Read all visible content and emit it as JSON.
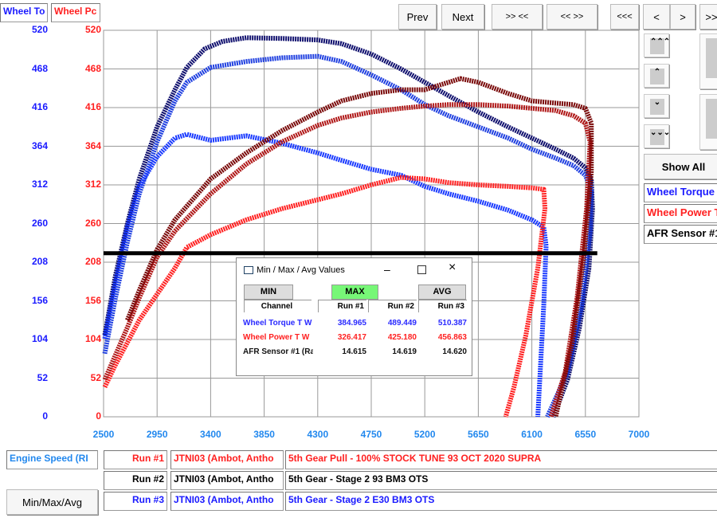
{
  "top_labels": {
    "torque": "Wheel To",
    "power": "Wheel Pc"
  },
  "toolbar": {
    "prev": "Prev",
    "next": "Next",
    "zoom_in": ">> <<",
    "zoom_out": "<< >>",
    "first": "<<<",
    "left": "<",
    "right": ">",
    "last": ">>"
  },
  "side": {
    "up3": "⌃⌃⌃",
    "up": "⌃",
    "down": "⌄",
    "down3": "⌄⌄⌄",
    "show_all": "Show All",
    "channels": [
      {
        "label": "Wheel Torque",
        "color": "#1a1aff"
      },
      {
        "label": "Wheel Power T",
        "color": "#ff2020"
      },
      {
        "label": "AFR Sensor #1",
        "color": "#000000"
      }
    ]
  },
  "colors": {
    "torque_axis": "#1a1aff",
    "power_axis": "#ff2020",
    "x_axis": "#2288ee",
    "run1_torque": "#1a3aff",
    "run2_torque": "#2040e0",
    "run3_torque": "#10106e",
    "run1_power": "#ff2020",
    "run2_power": "#b01818",
    "run3_power": "#7a0a0a",
    "afr": "#000000"
  },
  "chart_data": {
    "type": "line",
    "xlabel": "Engine Speed (RI",
    "xlim": [
      2500,
      7000
    ],
    "x_ticks": [
      "2500",
      "2950",
      "3400",
      "3850",
      "4300",
      "4750",
      "5200",
      "5650",
      "6100",
      "6550",
      "7000"
    ],
    "ylim": [
      0,
      520
    ],
    "y_ticks": [
      "0",
      "52",
      "104",
      "156",
      "208",
      "260",
      "312",
      "364",
      "416",
      "468",
      "520"
    ],
    "series": [
      {
        "key": "run3_torque",
        "points": [
          [
            2510,
            110
          ],
          [
            2600,
            190
          ],
          [
            2700,
            260
          ],
          [
            2800,
            320
          ],
          [
            2950,
            390
          ],
          [
            3100,
            440
          ],
          [
            3200,
            470
          ],
          [
            3350,
            495
          ],
          [
            3500,
            505
          ],
          [
            3700,
            510
          ],
          [
            4000,
            509
          ],
          [
            4300,
            507
          ],
          [
            4500,
            502
          ],
          [
            4750,
            488
          ],
          [
            5000,
            468
          ],
          [
            5200,
            450
          ],
          [
            5400,
            432
          ],
          [
            5650,
            410
          ],
          [
            5900,
            390
          ],
          [
            6100,
            375
          ],
          [
            6300,
            360
          ],
          [
            6450,
            348
          ],
          [
            6550,
            335
          ],
          [
            6600,
            320
          ],
          [
            6610,
            280
          ],
          [
            6580,
            200
          ],
          [
            6500,
            120
          ],
          [
            6400,
            50
          ],
          [
            6280,
            0
          ]
        ]
      },
      {
        "key": "run2_torque",
        "points": [
          [
            2510,
            85
          ],
          [
            2600,
            160
          ],
          [
            2700,
            235
          ],
          [
            2800,
            300
          ],
          [
            2950,
            370
          ],
          [
            3100,
            425
          ],
          [
            3200,
            450
          ],
          [
            3400,
            470
          ],
          [
            3700,
            478
          ],
          [
            4000,
            483
          ],
          [
            4300,
            485
          ],
          [
            4500,
            478
          ],
          [
            4750,
            460
          ],
          [
            5000,
            440
          ],
          [
            5200,
            420
          ],
          [
            5400,
            405
          ],
          [
            5650,
            390
          ],
          [
            5900,
            375
          ],
          [
            6100,
            360
          ],
          [
            6300,
            348
          ],
          [
            6450,
            338
          ],
          [
            6550,
            325
          ],
          [
            6600,
            305
          ],
          [
            6590,
            250
          ],
          [
            6520,
            150
          ],
          [
            6400,
            60
          ],
          [
            6230,
            0
          ]
        ]
      },
      {
        "key": "run1_torque",
        "points": [
          [
            2510,
            105
          ],
          [
            2600,
            180
          ],
          [
            2700,
            255
          ],
          [
            2800,
            310
          ],
          [
            2950,
            350
          ],
          [
            3100,
            375
          ],
          [
            3200,
            380
          ],
          [
            3400,
            372
          ],
          [
            3700,
            378
          ],
          [
            4000,
            368
          ],
          [
            4300,
            355
          ],
          [
            4500,
            345
          ],
          [
            4750,
            333
          ],
          [
            5000,
            325
          ],
          [
            5200,
            310
          ],
          [
            5400,
            300
          ],
          [
            5650,
            290
          ],
          [
            5900,
            278
          ],
          [
            6100,
            265
          ],
          [
            6200,
            255
          ],
          [
            6220,
            230
          ],
          [
            6200,
            150
          ],
          [
            6170,
            60
          ],
          [
            6150,
            0
          ]
        ]
      },
      {
        "key": "run1_power",
        "points": [
          [
            2510,
            40
          ],
          [
            2600,
            70
          ],
          [
            2700,
            100
          ],
          [
            2800,
            130
          ],
          [
            2950,
            165
          ],
          [
            3100,
            200
          ],
          [
            3200,
            228
          ],
          [
            3400,
            245
          ],
          [
            3700,
            265
          ],
          [
            4000,
            280
          ],
          [
            4300,
            292
          ],
          [
            4500,
            300
          ],
          [
            4750,
            312
          ],
          [
            5000,
            322
          ],
          [
            5200,
            320
          ],
          [
            5400,
            315
          ],
          [
            5650,
            312
          ],
          [
            5900,
            310
          ],
          [
            6100,
            308
          ],
          [
            6200,
            306
          ],
          [
            6210,
            280
          ],
          [
            6150,
            200
          ],
          [
            6050,
            110
          ],
          [
            5950,
            40
          ],
          [
            5880,
            0
          ]
        ]
      },
      {
        "key": "run2_power",
        "points": [
          [
            2510,
            50
          ],
          [
            2700,
            120
          ],
          [
            2800,
            160
          ],
          [
            2950,
            215
          ],
          [
            3100,
            250
          ],
          [
            3400,
            300
          ],
          [
            3700,
            340
          ],
          [
            4000,
            370
          ],
          [
            4300,
            392
          ],
          [
            4500,
            402
          ],
          [
            4750,
            410
          ],
          [
            5000,
            415
          ],
          [
            5200,
            418
          ],
          [
            5400,
            420
          ],
          [
            5650,
            420
          ],
          [
            5900,
            418
          ],
          [
            6100,
            415
          ],
          [
            6300,
            412
          ],
          [
            6450,
            405
          ],
          [
            6550,
            395
          ],
          [
            6590,
            370
          ],
          [
            6560,
            280
          ],
          [
            6480,
            160
          ],
          [
            6380,
            60
          ],
          [
            6260,
            0
          ]
        ]
      },
      {
        "key": "run3_power",
        "points": [
          [
            2700,
            130
          ],
          [
            2800,
            170
          ],
          [
            2950,
            225
          ],
          [
            3100,
            265
          ],
          [
            3400,
            320
          ],
          [
            3700,
            355
          ],
          [
            3850,
            370
          ],
          [
            4000,
            385
          ],
          [
            4300,
            410
          ],
          [
            4500,
            425
          ],
          [
            4750,
            435
          ],
          [
            5000,
            440
          ],
          [
            5200,
            440
          ],
          [
            5400,
            450
          ],
          [
            5500,
            455
          ],
          [
            5650,
            450
          ],
          [
            5900,
            435
          ],
          [
            6100,
            425
          ],
          [
            6300,
            422
          ],
          [
            6450,
            420
          ],
          [
            6550,
            415
          ],
          [
            6600,
            395
          ],
          [
            6600,
            330
          ],
          [
            6540,
            220
          ],
          [
            6440,
            100
          ],
          [
            6300,
            0
          ]
        ]
      },
      {
        "key": "afr",
        "points": [
          [
            2500,
            220
          ],
          [
            6650,
            220
          ]
        ]
      }
    ]
  },
  "dialog": {
    "title": "Min / Max / Avg Values",
    "min": "MIN",
    "max": "MAX",
    "avg": "AVG",
    "headers": [
      "Channel",
      "Run #1",
      "Run #2",
      "Run #3"
    ],
    "rows": [
      {
        "channel": "Wheel Torque T W",
        "values": [
          "384.965",
          "489.449",
          "510.387"
        ],
        "color": "#2a2aff"
      },
      {
        "channel": "Wheel Power T W",
        "values": [
          "326.417",
          "425.180",
          "456.863"
        ],
        "color": "#ff2020"
      },
      {
        "channel": "AFR Sensor #1 (Ra",
        "values": [
          "14.615",
          "14.619",
          "14.620"
        ],
        "color": "#111111"
      }
    ]
  },
  "bottom": {
    "x_channel": "Engine Speed (RI",
    "minmax_button": "Min/Max/Avg",
    "runs": [
      {
        "label": "Run #1",
        "vehicle": "JTNI03 (Ambot, Antho",
        "desc": "5th Gear Pull - 100% STOCK TUNE 93 OCT 2020 SUPRA",
        "color": "#ff2020"
      },
      {
        "label": "Run #2",
        "vehicle": "JTNI03 (Ambot, Antho",
        "desc": "5th Gear - Stage 2 93 BM3 OTS",
        "color": "#000000"
      },
      {
        "label": "Run #3",
        "vehicle": "JTNI03 (Ambot, Antho",
        "desc": "5th Gear - Stage 2 E30 BM3 OTS",
        "color": "#1a1aff"
      }
    ]
  }
}
